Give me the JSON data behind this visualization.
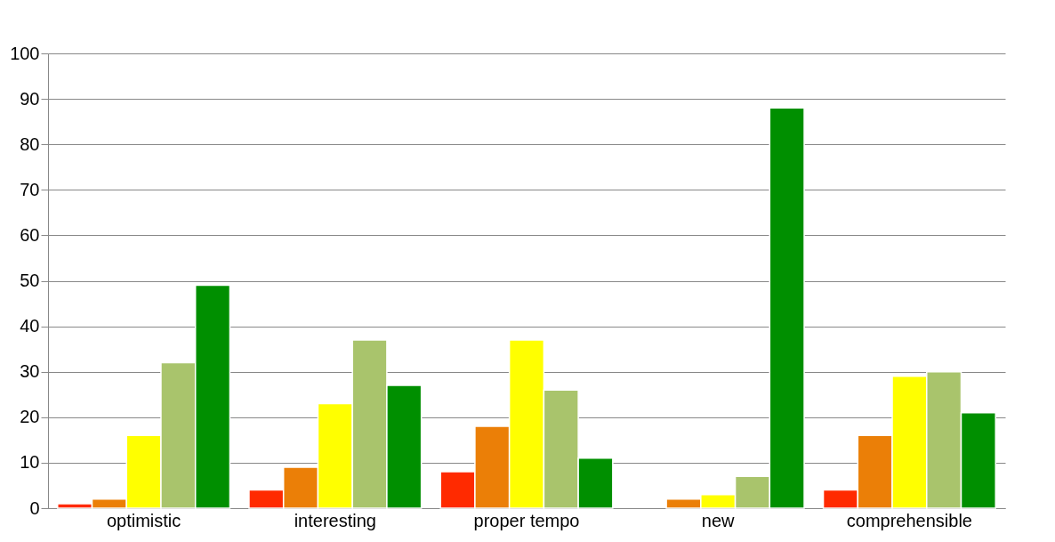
{
  "chart_data": {
    "type": "bar",
    "categories": [
      "optimistic",
      "interesting",
      "proper tempo",
      "new",
      "comprehensible"
    ],
    "series": [
      {
        "color": "#ff2a00",
        "values": [
          1,
          4,
          8,
          null,
          4
        ]
      },
      {
        "color": "#eb7f07",
        "values": [
          2,
          9,
          18,
          2,
          16
        ]
      },
      {
        "color": "#ffff00",
        "values": [
          16,
          23,
          37,
          3,
          29
        ]
      },
      {
        "color": "#a9c46c",
        "values": [
          32,
          37,
          26,
          7,
          30
        ]
      },
      {
        "color": "#008f00",
        "values": [
          49,
          27,
          11,
          88,
          21
        ]
      }
    ],
    "ylim": [
      0,
      100
    ],
    "yticks": [
      0,
      10,
      20,
      30,
      40,
      50,
      60,
      70,
      80,
      90,
      100
    ],
    "grid": "y",
    "legend": false
  }
}
